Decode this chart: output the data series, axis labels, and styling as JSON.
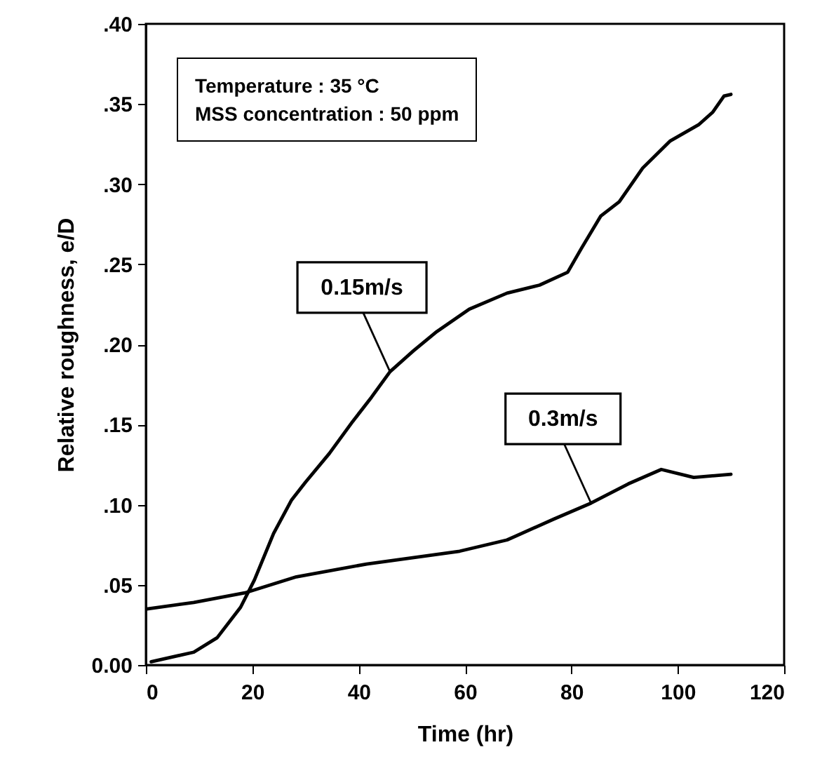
{
  "chart_data": {
    "type": "line",
    "xlabel": "Time (hr)",
    "ylabel": "Relative roughness, e/D",
    "xlim": [
      0,
      120
    ],
    "xticks": [
      0,
      20,
      40,
      60,
      80,
      100,
      120
    ],
    "ylim": [
      0,
      0.4
    ],
    "yticks": [
      {
        "value": 0,
        "label": "0.00"
      },
      {
        "value": 0.05,
        "label": ".05"
      },
      {
        "value": 0.1,
        "label": ".10"
      },
      {
        "value": 0.15,
        "label": ".15"
      },
      {
        "value": 0.2,
        "label": ".20"
      },
      {
        "value": 0.25,
        "label": ".25"
      },
      {
        "value": 0.3,
        "label": ".30"
      },
      {
        "value": 0.35,
        "label": ".35"
      },
      {
        "value": 0.4,
        "label": ".40"
      }
    ],
    "grid": false,
    "marker": "none",
    "line_style": "solid",
    "series": [
      {
        "color": "#000000",
        "x": [
          1,
          9,
          13.4,
          17.8,
          20.4,
          24,
          27.4,
          30,
          34.5,
          38.9,
          42.4,
          45.9,
          50.3,
          54.7,
          60.8,
          67.9,
          74,
          79.3,
          81.9,
          85.5,
          89,
          93.4,
          98.6,
          103.9,
          106.6,
          108.7,
          110
        ],
        "values": [
          0.002,
          0.008,
          0.017,
          0.036,
          0.053,
          0.082,
          0.103,
          0.114,
          0.132,
          0.152,
          0.167,
          0.183,
          0.196,
          0.208,
          0.222,
          0.232,
          0.237,
          0.245,
          0.26,
          0.28,
          0.289,
          0.31,
          0.327,
          0.337,
          0.345,
          0.355,
          0.356
        ]
      },
      {
        "color": "#000000",
        "x": [
          0.2,
          9,
          18.6,
          28.3,
          41.5,
          59,
          67.9,
          76.7,
          83.7,
          90.7,
          96.9,
          103,
          110
        ],
        "values": [
          0.035,
          0.039,
          0.045,
          0.055,
          0.063,
          0.071,
          0.078,
          0.091,
          0.101,
          0.113,
          0.122,
          0.117,
          0.119
        ]
      }
    ],
    "annotations": [
      "Temperature : 35 °C",
      "MSS concentration : 50 ppm",
      {
        "text": "0.15m/s",
        "x": 45.9,
        "y": 0.183
      },
      {
        "text": "0.3m/s",
        "x": 83.7,
        "y": 0.101
      }
    ]
  }
}
